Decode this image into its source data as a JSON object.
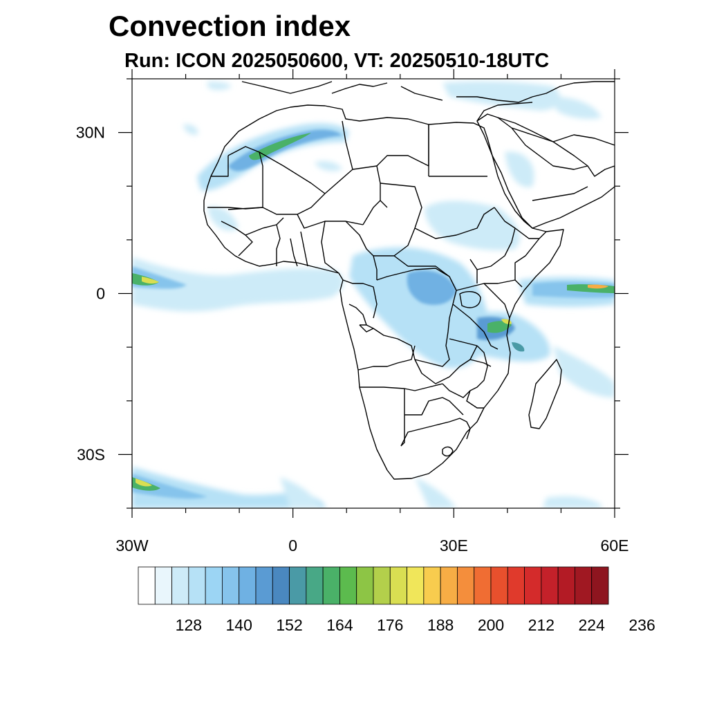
{
  "header": {
    "title": "Convection index",
    "subtitle": "Run: ICON 2025050600,  VT: 20250510-18UTC"
  },
  "map": {
    "lon_range": [
      -30,
      60
    ],
    "lat_range": [
      -40,
      40
    ],
    "x_ticks": [
      {
        "value": -30,
        "label": "30W"
      },
      {
        "value": 0,
        "label": "0"
      },
      {
        "value": 30,
        "label": "30E"
      },
      {
        "value": 60,
        "label": "60E"
      }
    ],
    "y_ticks": [
      {
        "value": 30,
        "label": "30N"
      },
      {
        "value": 0,
        "label": "0"
      },
      {
        "value": -30,
        "label": "30S"
      }
    ],
    "minor_tick_step_deg": 10
  },
  "colorbar": {
    "colors": [
      "#ffffff",
      "#e9f6fc",
      "#cdebf8",
      "#b6e1f6",
      "#9cd5f4",
      "#86c4ec",
      "#6fb1e3",
      "#5a9bd3",
      "#4a88c0",
      "#4a9aa6",
      "#48a886",
      "#4ab168",
      "#5cbb4e",
      "#8dc545",
      "#b3d04b",
      "#d9de52",
      "#f0e65a",
      "#f8cc4e",
      "#f7ad45",
      "#f48e3c",
      "#f06d33",
      "#e8502d",
      "#e03a2c",
      "#d42b2b",
      "#c4212a",
      "#b31b25",
      "#a01822",
      "#8e151f"
    ],
    "labels": [
      "128",
      "140",
      "152",
      "164",
      "176",
      "188",
      "200",
      "212",
      "224",
      "236"
    ]
  },
  "convection_areas": [
    {
      "region": "Morocco-Algeria band",
      "shade": "green"
    },
    {
      "region": "Equatorial Atlantic band",
      "shade": "light-blue"
    },
    {
      "region": "Congo basin",
      "shade": "blue"
    },
    {
      "region": "East Africa coast",
      "shade": "green-yellow"
    },
    {
      "region": "Indian Ocean equatorial",
      "shade": "orange"
    },
    {
      "region": "South Atlantic frontal band",
      "shade": "green-yellow"
    }
  ]
}
